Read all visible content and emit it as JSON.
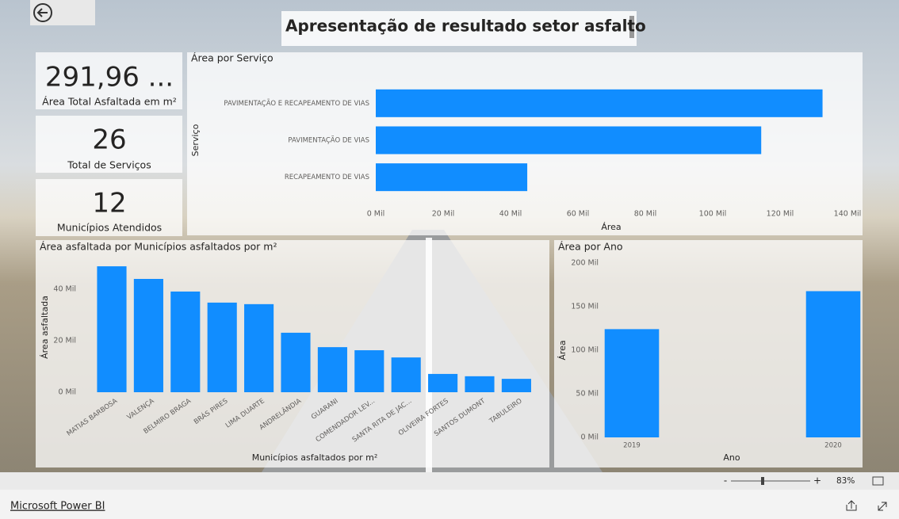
{
  "header": {
    "title": "Apresentação de resultado setor asfalto"
  },
  "cards": [
    {
      "value": "291,96 ...",
      "label": "Área Total Asfaltada em m²"
    },
    {
      "value": "26",
      "label": "Total de Serviços"
    },
    {
      "value": "12",
      "label": "Municípios Atendidos"
    }
  ],
  "chart_data": [
    {
      "type": "bar",
      "orientation": "horizontal",
      "title": "Área por Serviço",
      "x_label": "Área",
      "y_label": "Serviço",
      "categories": [
        "PAVIMENTAÇÃO E RECAPEAMENTO DE VIAS",
        "PAVIMENTAÇÃO DE VIAS",
        "RECAPEAMENTO DE VIAS"
      ],
      "values": [
        132600,
        114400,
        44960
      ],
      "color": "#118DFF",
      "xlim": [
        0,
        140000
      ],
      "xticks": [
        {
          "value": 0,
          "label": "0 Mil"
        },
        {
          "value": 20000,
          "label": "20 Mil"
        },
        {
          "value": 40000,
          "label": "40 Mil"
        },
        {
          "value": 60000,
          "label": "60 Mil"
        },
        {
          "value": 80000,
          "label": "80 Mil"
        },
        {
          "value": 100000,
          "label": "100 Mil"
        },
        {
          "value": 120000,
          "label": "120 Mil"
        },
        {
          "value": 140000,
          "label": "140 Mil"
        }
      ]
    },
    {
      "type": "bar",
      "orientation": "vertical",
      "title": "Área asfaltada por Municípios asfaltados por m²",
      "x_label": "Municípios asfaltados por m²",
      "y_label": "Área asfaltada",
      "categories": [
        "MATIAS BARBOSA",
        "VALENÇA",
        "BELMIRO BRAGA",
        "BRÁS PIRES",
        "LIMA DUARTE",
        "ANDRELÂNDIA",
        "GUARANI",
        "COMENDADOR LEV...",
        "SANTA RITA DE JAC...",
        "OLIVEIRA FORTES",
        "SANTOS DUMONT",
        "TABULEIRO"
      ],
      "values": [
        48900,
        44000,
        39100,
        34800,
        34200,
        23100,
        17500,
        16300,
        13500,
        7100,
        6200,
        5200
      ],
      "color": "#118DFF",
      "ylim": [
        0,
        50000
      ],
      "yticks": [
        {
          "value": 0,
          "label": "0 Mil"
        },
        {
          "value": 20000,
          "label": "20 Mil"
        },
        {
          "value": 40000,
          "label": "40 Mil"
        }
      ]
    },
    {
      "type": "bar",
      "orientation": "vertical",
      "title": "Área por Ano",
      "x_label": "Ano",
      "y_label": "Área",
      "categories": [
        "2019",
        "2020"
      ],
      "values": [
        124200,
        167760
      ],
      "color": "#118DFF",
      "ylim": [
        0,
        200000
      ],
      "yticks": [
        {
          "value": 0,
          "label": "0 Mil"
        },
        {
          "value": 50000,
          "label": "50 Mil"
        },
        {
          "value": 100000,
          "label": "100 Mil"
        },
        {
          "value": 150000,
          "label": "150 Mil"
        },
        {
          "value": 200000,
          "label": "200 Mil"
        }
      ]
    }
  ],
  "zoom": {
    "minus": "-",
    "plus": "+",
    "level": "83%"
  },
  "footer": {
    "link": "Microsoft Power BI"
  }
}
